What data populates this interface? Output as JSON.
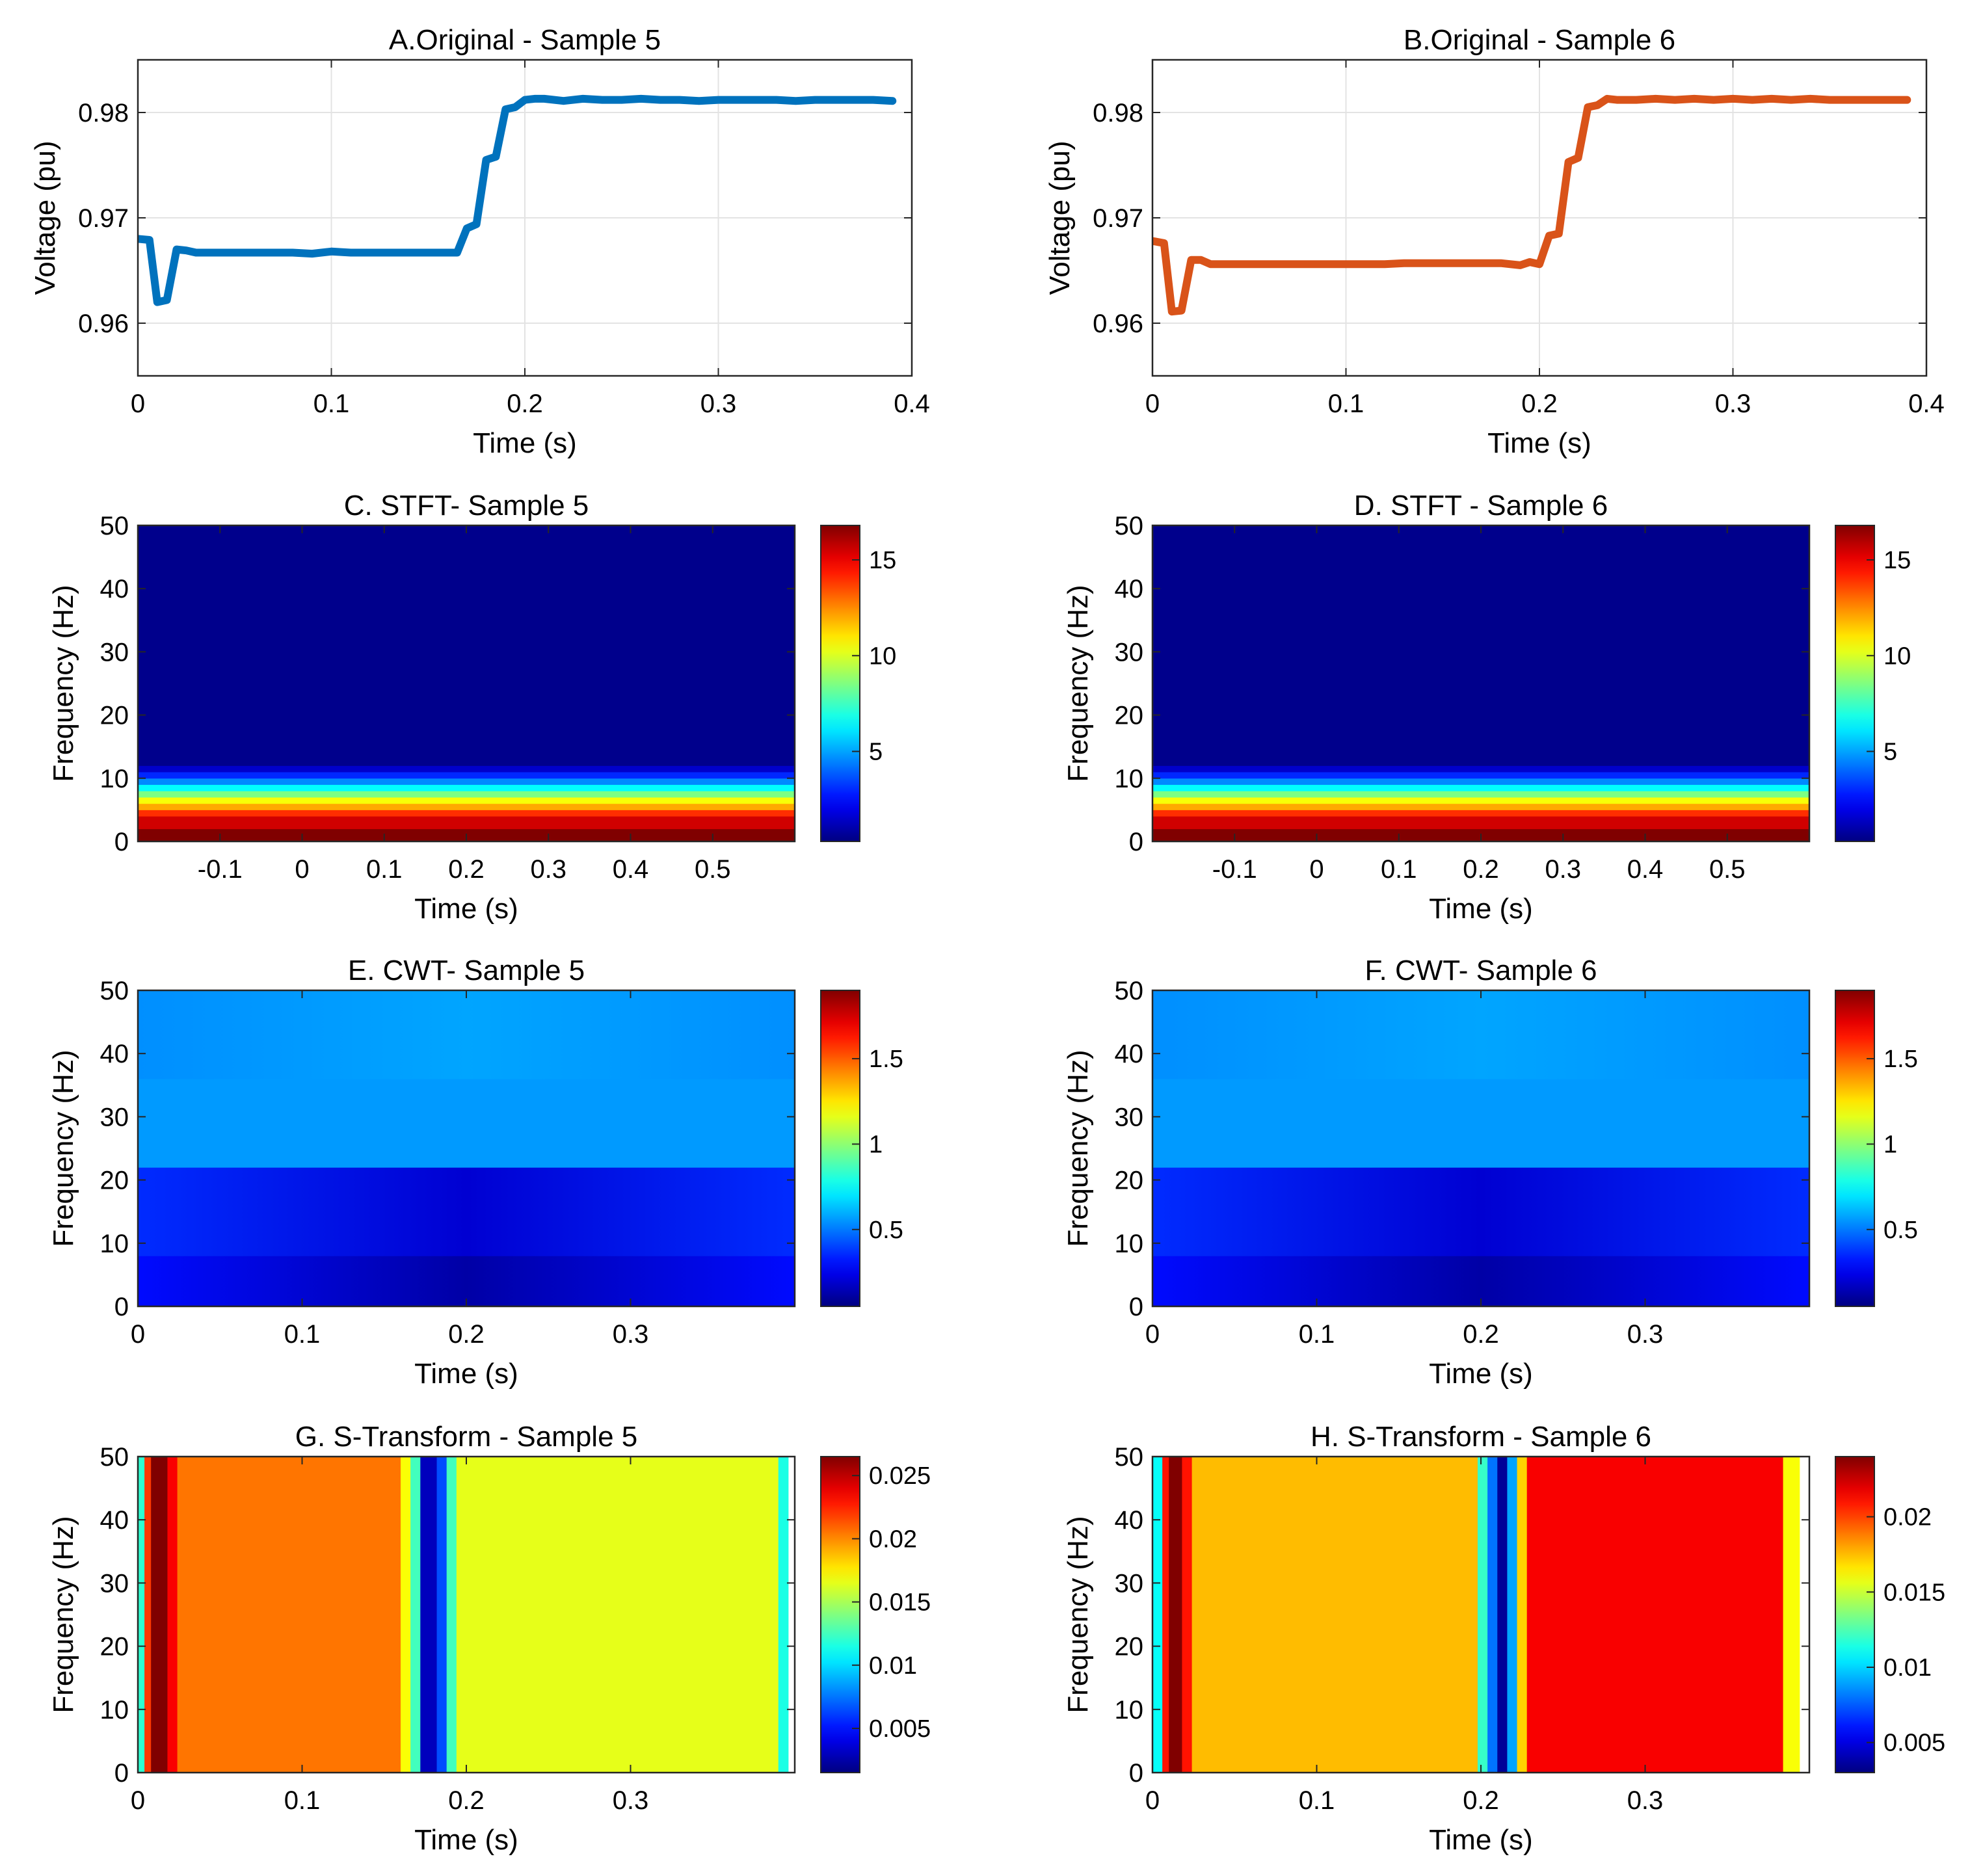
{
  "chart_data": [
    {
      "id": "A",
      "type": "line",
      "title": "A.Original - Sample 5",
      "xlabel": "Time (s)",
      "ylabel": "Voltage (pu)",
      "xlim": [
        0,
        0.4
      ],
      "ylim": [
        0.955,
        0.985
      ],
      "xticks": [
        0,
        0.1,
        0.2,
        0.3,
        0.4
      ],
      "xtick_labels": [
        "0",
        "0.1",
        "0.2",
        "0.3",
        "0.4"
      ],
      "yticks": [
        0.96,
        0.97,
        0.98
      ],
      "ytick_labels": [
        "0.96",
        "0.97",
        "0.98"
      ],
      "grid": true,
      "series": [
        {
          "name": "Sample 5",
          "color": "#0072BD",
          "x": [
            0,
            0.006,
            0.01,
            0.015,
            0.02,
            0.025,
            0.03,
            0.04,
            0.05,
            0.06,
            0.07,
            0.08,
            0.09,
            0.1,
            0.11,
            0.12,
            0.13,
            0.14,
            0.15,
            0.16,
            0.165,
            0.17,
            0.175,
            0.18,
            0.185,
            0.19,
            0.195,
            0.2,
            0.205,
            0.21,
            0.22,
            0.23,
            0.24,
            0.25,
            0.26,
            0.27,
            0.28,
            0.29,
            0.3,
            0.31,
            0.32,
            0.33,
            0.34,
            0.35,
            0.36,
            0.37,
            0.38,
            0.39
          ],
          "y": [
            0.968,
            0.9679,
            0.962,
            0.9622,
            0.967,
            0.9669,
            0.9667,
            0.9667,
            0.9667,
            0.9667,
            0.9667,
            0.9667,
            0.9666,
            0.9668,
            0.9667,
            0.9667,
            0.9667,
            0.9667,
            0.9667,
            0.9667,
            0.9667,
            0.969,
            0.9694,
            0.9755,
            0.9758,
            0.9803,
            0.9805,
            0.9812,
            0.9813,
            0.9813,
            0.9811,
            0.9813,
            0.9812,
            0.9812,
            0.9813,
            0.9812,
            0.9812,
            0.9811,
            0.9812,
            0.9812,
            0.9812,
            0.9812,
            0.9811,
            0.9812,
            0.9812,
            0.9812,
            0.9812,
            0.9811
          ]
        }
      ]
    },
    {
      "id": "B",
      "type": "line",
      "title": "B.Original - Sample 6",
      "xlabel": "Time (s)",
      "ylabel": "Voltage (pu)",
      "xlim": [
        0,
        0.4
      ],
      "ylim": [
        0.955,
        0.985
      ],
      "xticks": [
        0,
        0.1,
        0.2,
        0.3,
        0.4
      ],
      "xtick_labels": [
        "0",
        "0.1",
        "0.2",
        "0.3",
        "0.4"
      ],
      "yticks": [
        0.96,
        0.97,
        0.98
      ],
      "ytick_labels": [
        "0.96",
        "0.97",
        "0.98"
      ],
      "grid": true,
      "series": [
        {
          "name": "Sample 6",
          "color": "#D95319",
          "x": [
            0,
            0.006,
            0.01,
            0.015,
            0.02,
            0.025,
            0.03,
            0.04,
            0.05,
            0.06,
            0.07,
            0.08,
            0.09,
            0.1,
            0.11,
            0.12,
            0.13,
            0.14,
            0.15,
            0.16,
            0.17,
            0.18,
            0.19,
            0.195,
            0.2,
            0.205,
            0.21,
            0.215,
            0.22,
            0.225,
            0.23,
            0.235,
            0.24,
            0.25,
            0.26,
            0.27,
            0.28,
            0.29,
            0.3,
            0.31,
            0.32,
            0.33,
            0.34,
            0.35,
            0.36,
            0.37,
            0.38,
            0.39
          ],
          "y": [
            0.9678,
            0.9676,
            0.9611,
            0.9612,
            0.966,
            0.966,
            0.9656,
            0.9656,
            0.9656,
            0.9656,
            0.9656,
            0.9656,
            0.9656,
            0.9656,
            0.9656,
            0.9656,
            0.9657,
            0.9657,
            0.9657,
            0.9657,
            0.9657,
            0.9657,
            0.9655,
            0.9658,
            0.9656,
            0.9683,
            0.9685,
            0.9753,
            0.9757,
            0.9805,
            0.9807,
            0.9813,
            0.9812,
            0.9812,
            0.9813,
            0.9812,
            0.9813,
            0.9812,
            0.9813,
            0.9812,
            0.9813,
            0.9812,
            0.9813,
            0.9812,
            0.9812,
            0.9812,
            0.9812,
            0.9812
          ]
        }
      ]
    },
    {
      "id": "C",
      "type": "heatmap",
      "pattern": "horizontal-bands",
      "title": "C. STFT- Sample 5",
      "xlabel": "Time (s)",
      "ylabel": "Frequency (Hz)",
      "xlim": [
        -0.2,
        0.6
      ],
      "ylim": [
        0,
        50
      ],
      "xticks": [
        -0.1,
        0,
        0.1,
        0.2,
        0.3,
        0.4,
        0.5
      ],
      "xtick_labels": [
        "-0.1",
        "0",
        "0.1",
        "0.2",
        "0.3",
        "0.4",
        "0.5"
      ],
      "yticks": [
        0,
        10,
        20,
        30,
        40,
        50
      ],
      "ytick_labels": [
        "0",
        "10",
        "20",
        "30",
        "40",
        "50"
      ],
      "colormap": "jet",
      "clim": [
        0.3,
        16.8
      ],
      "colorbar_ticks": [
        5,
        10,
        15
      ],
      "colorbar_tick_labels": [
        "5",
        "10",
        "15"
      ],
      "bands": [
        {
          "f0": 0,
          "f1": 2,
          "value": 16.8
        },
        {
          "f0": 2,
          "f1": 4,
          "value": 15.5
        },
        {
          "f0": 4,
          "f1": 5,
          "value": 14.0
        },
        {
          "f0": 5,
          "f1": 6,
          "value": 12.0
        },
        {
          "f0": 6,
          "f1": 7,
          "value": 10.5
        },
        {
          "f0": 7,
          "f1": 8,
          "value": 8.5
        },
        {
          "f0": 8,
          "f1": 9,
          "value": 6.5
        },
        {
          "f0": 9,
          "f1": 10,
          "value": 4.6
        },
        {
          "f0": 10,
          "f1": 11,
          "value": 3.0
        },
        {
          "f0": 11,
          "f1": 12,
          "value": 1.5
        },
        {
          "f0": 12,
          "f1": 50,
          "value": 0.5
        }
      ]
    },
    {
      "id": "D",
      "type": "heatmap",
      "pattern": "horizontal-bands",
      "title": "D. STFT - Sample 6",
      "xlabel": "Time (s)",
      "ylabel": "Frequency (Hz)",
      "xlim": [
        -0.2,
        0.6
      ],
      "ylim": [
        0,
        50
      ],
      "xticks": [
        -0.1,
        0,
        0.1,
        0.2,
        0.3,
        0.4,
        0.5
      ],
      "xtick_labels": [
        "-0.1",
        "0",
        "0.1",
        "0.2",
        "0.3",
        "0.4",
        "0.5"
      ],
      "yticks": [
        0,
        10,
        20,
        30,
        40,
        50
      ],
      "ytick_labels": [
        "0",
        "10",
        "20",
        "30",
        "40",
        "50"
      ],
      "colormap": "jet",
      "clim": [
        0.3,
        16.8
      ],
      "colorbar_ticks": [
        5,
        10,
        15
      ],
      "colorbar_tick_labels": [
        "5",
        "10",
        "15"
      ],
      "bands": [
        {
          "f0": 0,
          "f1": 2,
          "value": 16.8
        },
        {
          "f0": 2,
          "f1": 4,
          "value": 15.5
        },
        {
          "f0": 4,
          "f1": 5,
          "value": 14.0
        },
        {
          "f0": 5,
          "f1": 6,
          "value": 12.0
        },
        {
          "f0": 6,
          "f1": 7,
          "value": 10.5
        },
        {
          "f0": 7,
          "f1": 8,
          "value": 8.5
        },
        {
          "f0": 8,
          "f1": 9,
          "value": 6.5
        },
        {
          "f0": 9,
          "f1": 10,
          "value": 4.6
        },
        {
          "f0": 10,
          "f1": 11,
          "value": 3.0
        },
        {
          "f0": 11,
          "f1": 12,
          "value": 1.5
        },
        {
          "f0": 12,
          "f1": 50,
          "value": 0.5
        }
      ]
    },
    {
      "id": "E",
      "type": "heatmap",
      "pattern": "cwt-bands",
      "title": "E. CWT- Sample 5",
      "xlabel": "Time (s)",
      "ylabel": "Frequency (Hz)",
      "xlim": [
        0,
        0.4
      ],
      "ylim": [
        0,
        50
      ],
      "xticks": [
        0,
        0.1,
        0.2,
        0.3
      ],
      "xtick_labels": [
        "0",
        "0.1",
        "0.2",
        "0.3"
      ],
      "yticks": [
        0,
        10,
        20,
        30,
        40,
        50
      ],
      "ytick_labels": [
        "0",
        "10",
        "20",
        "30",
        "40",
        "50"
      ],
      "colormap": "jet",
      "clim": [
        0.05,
        1.9
      ],
      "colorbar_ticks": [
        0.5,
        1,
        1.5
      ],
      "colorbar_tick_labels": [
        "0.5",
        "1",
        "1.5"
      ],
      "center_time": 0.2,
      "bands": [
        {
          "f0": 0,
          "f1": 8,
          "center": 0.12,
          "edge": 0.3
        },
        {
          "f0": 8,
          "f1": 22,
          "center": 0.2,
          "edge": 0.36
        },
        {
          "f0": 22,
          "f1": 36,
          "center": 0.56,
          "edge": 0.56
        },
        {
          "f0": 36,
          "f1": 50,
          "center": 0.58,
          "edge": 0.54
        }
      ]
    },
    {
      "id": "F",
      "type": "heatmap",
      "pattern": "cwt-bands",
      "title": "F. CWT- Sample 6",
      "xlabel": "Time (s)",
      "ylabel": "Frequency (Hz)",
      "xlim": [
        0,
        0.4
      ],
      "ylim": [
        0,
        50
      ],
      "xticks": [
        0,
        0.1,
        0.2,
        0.3
      ],
      "xtick_labels": [
        "0",
        "0.1",
        "0.2",
        "0.3"
      ],
      "yticks": [
        0,
        10,
        20,
        30,
        40,
        50
      ],
      "ytick_labels": [
        "0",
        "10",
        "20",
        "30",
        "40",
        "50"
      ],
      "colormap": "jet",
      "clim": [
        0.05,
        1.9
      ],
      "colorbar_ticks": [
        0.5,
        1,
        1.5
      ],
      "colorbar_tick_labels": [
        "0.5",
        "1",
        "1.5"
      ],
      "center_time": 0.2,
      "bands": [
        {
          "f0": 0,
          "f1": 8,
          "center": 0.12,
          "edge": 0.3
        },
        {
          "f0": 8,
          "f1": 22,
          "center": 0.2,
          "edge": 0.36
        },
        {
          "f0": 22,
          "f1": 36,
          "center": 0.56,
          "edge": 0.56
        },
        {
          "f0": 36,
          "f1": 50,
          "center": 0.58,
          "edge": 0.54
        }
      ]
    },
    {
      "id": "G",
      "type": "heatmap",
      "pattern": "vertical-segments",
      "title": "G. S-Transform - Sample 5",
      "xlabel": "Time (s)",
      "ylabel": "Frequency (Hz)",
      "xlim": [
        0,
        0.4
      ],
      "ylim": [
        0,
        50
      ],
      "xticks": [
        0,
        0.1,
        0.2,
        0.3
      ],
      "xtick_labels": [
        "0",
        "0.1",
        "0.2",
        "0.3"
      ],
      "yticks": [
        0,
        10,
        20,
        30,
        40,
        50
      ],
      "ytick_labels": [
        "0",
        "10",
        "20",
        "30",
        "40",
        "50"
      ],
      "colormap": "jet",
      "clim": [
        0.0015,
        0.0265
      ],
      "colorbar_ticks": [
        0.005,
        0.01,
        0.015,
        0.02,
        0.025
      ],
      "colorbar_tick_labels": [
        "0.005",
        "0.01",
        "0.015",
        "0.02",
        "0.025"
      ],
      "segments": [
        {
          "t0": 0,
          "t1": 0.004,
          "value": 0.012
        },
        {
          "t0": 0.004,
          "t1": 0.008,
          "value": 0.022
        },
        {
          "t0": 0.008,
          "t1": 0.018,
          "value": 0.0265
        },
        {
          "t0": 0.018,
          "t1": 0.024,
          "value": 0.0235
        },
        {
          "t0": 0.024,
          "t1": 0.16,
          "value": 0.0205
        },
        {
          "t0": 0.16,
          "t1": 0.166,
          "value": 0.017
        },
        {
          "t0": 0.166,
          "t1": 0.172,
          "value": 0.0125
        },
        {
          "t0": 0.172,
          "t1": 0.182,
          "value": 0.003
        },
        {
          "t0": 0.182,
          "t1": 0.188,
          "value": 0.0065
        },
        {
          "t0": 0.188,
          "t1": 0.194,
          "value": 0.0125
        },
        {
          "t0": 0.194,
          "t1": 0.39,
          "value": 0.0165
        },
        {
          "t0": 0.39,
          "t1": 0.396,
          "value": 0.0115
        }
      ]
    },
    {
      "id": "H",
      "type": "heatmap",
      "pattern": "vertical-segments",
      "title": "H. S-Transform - Sample 6",
      "xlabel": "Time (s)",
      "ylabel": "Frequency (Hz)",
      "xlim": [
        0,
        0.4
      ],
      "ylim": [
        0,
        50
      ],
      "xticks": [
        0,
        0.1,
        0.2,
        0.3
      ],
      "xtick_labels": [
        "0",
        "0.1",
        "0.2",
        "0.3"
      ],
      "yticks": [
        0,
        10,
        20,
        30,
        40,
        50
      ],
      "ytick_labels": [
        "0",
        "10",
        "20",
        "30",
        "40",
        "50"
      ],
      "colormap": "jet",
      "clim": [
        0.003,
        0.024
      ],
      "colorbar_ticks": [
        0.005,
        0.01,
        0.015,
        0.02
      ],
      "colorbar_tick_labels": [
        "0.005",
        "0.01",
        "0.015",
        "0.02"
      ],
      "segments": [
        {
          "t0": 0,
          "t1": 0.006,
          "value": 0.011
        },
        {
          "t0": 0.006,
          "t1": 0.01,
          "value": 0.021
        },
        {
          "t0": 0.01,
          "t1": 0.018,
          "value": 0.024
        },
        {
          "t0": 0.018,
          "t1": 0.024,
          "value": 0.021
        },
        {
          "t0": 0.024,
          "t1": 0.198,
          "value": 0.0175
        },
        {
          "t0": 0.198,
          "t1": 0.204,
          "value": 0.012
        },
        {
          "t0": 0.204,
          "t1": 0.21,
          "value": 0.008
        },
        {
          "t0": 0.21,
          "t1": 0.216,
          "value": 0.0035
        },
        {
          "t0": 0.216,
          "t1": 0.222,
          "value": 0.009
        },
        {
          "t0": 0.222,
          "t1": 0.228,
          "value": 0.017
        },
        {
          "t0": 0.228,
          "t1": 0.384,
          "value": 0.0215
        },
        {
          "t0": 0.384,
          "t1": 0.394,
          "value": 0.016
        }
      ]
    }
  ]
}
